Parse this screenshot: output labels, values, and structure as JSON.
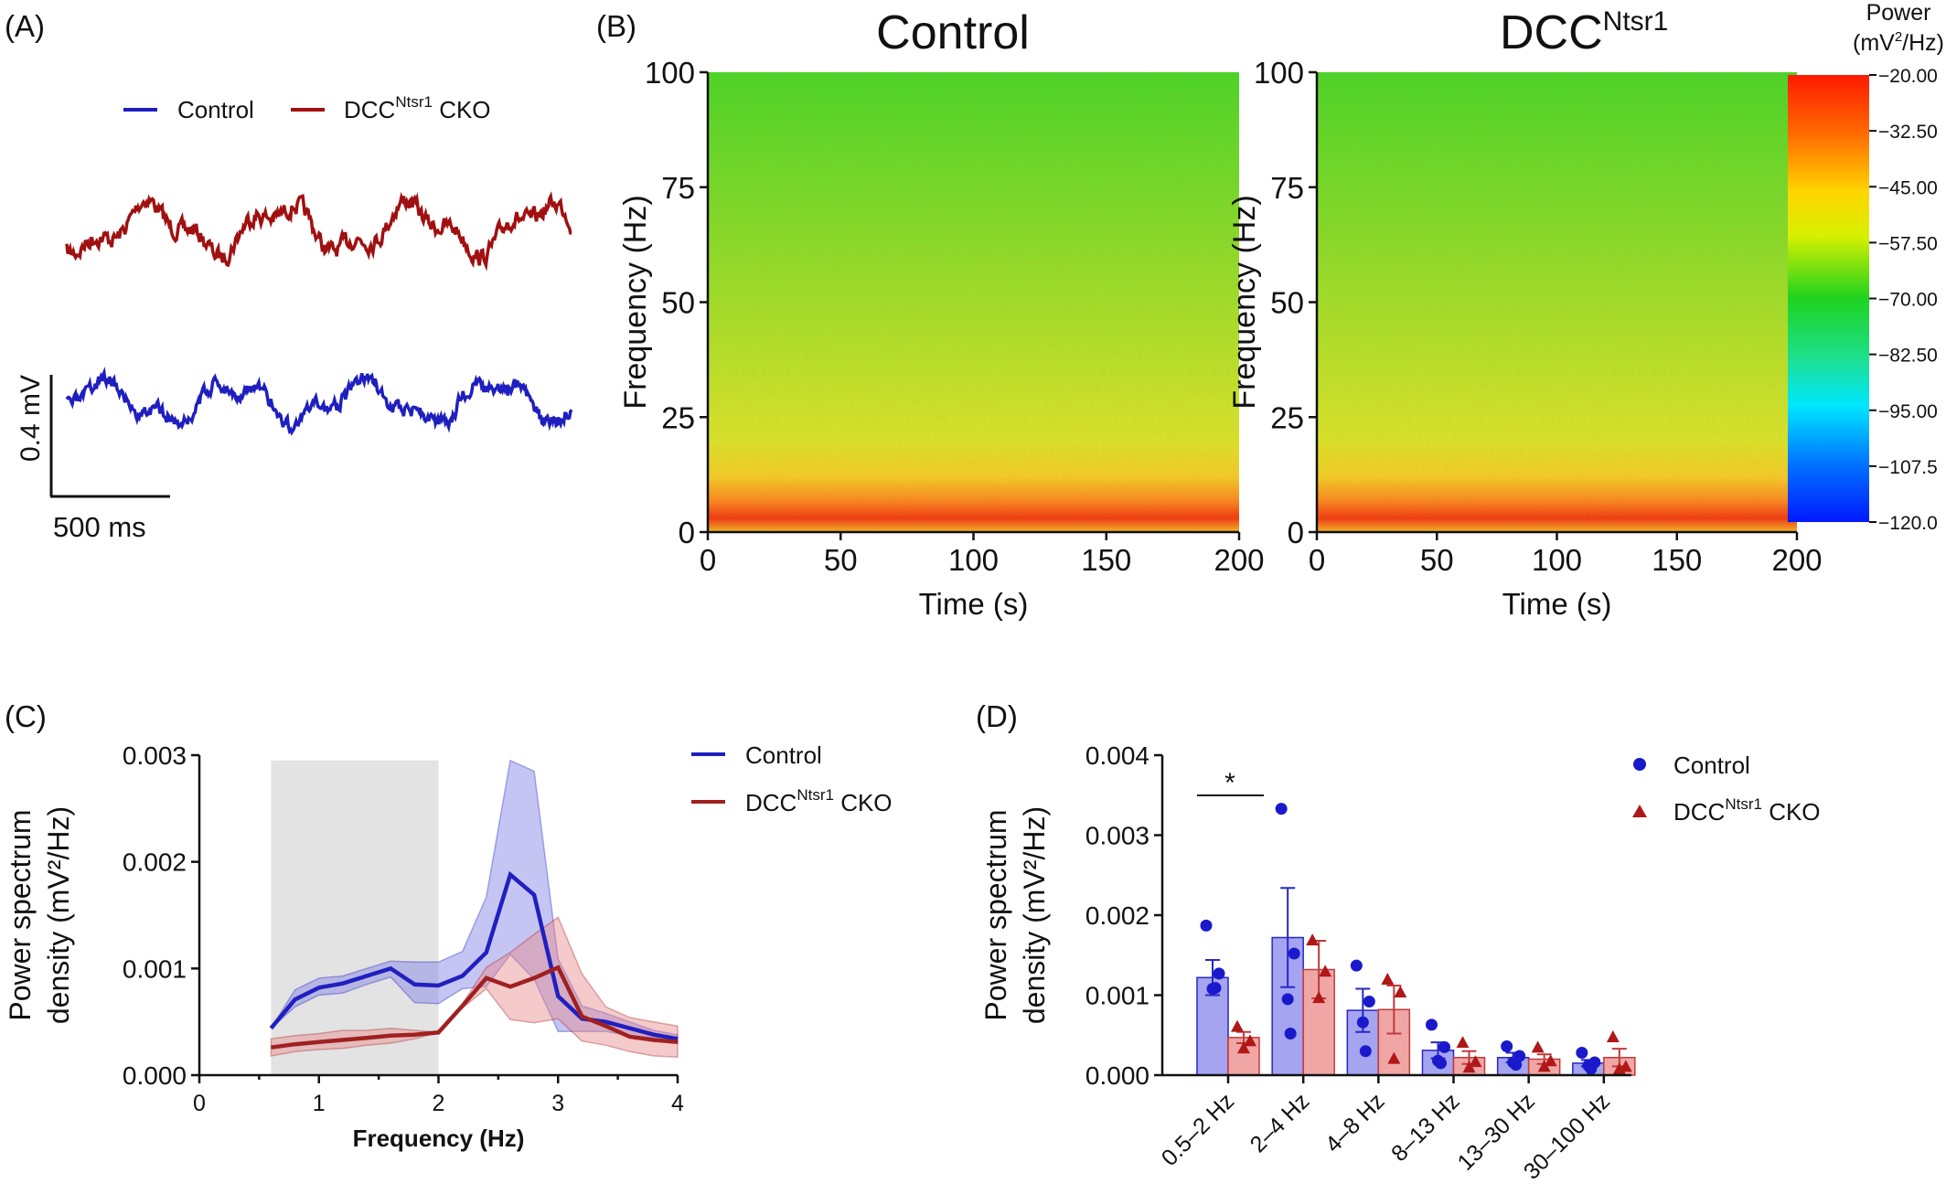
{
  "panels": {
    "A": {
      "label": "(A)",
      "legend": [
        {
          "name": "Control",
          "color": "#1f1fbf"
        },
        {
          "name": "DCC",
          "sup": "Ntsr1",
          "suffix": " CKO",
          "color": "#a01010"
        }
      ],
      "scale_bar": {
        "vertical": "0.4 mV",
        "horizontal": "500 ms"
      }
    },
    "B": {
      "label": "(B)",
      "title_left": "Control",
      "title_right_base": "DCC",
      "title_right_sup": "Ntsr1",
      "colorbar": {
        "title_line1": "Power",
        "title_line2_base": "(mV",
        "title_line2_sup": "2",
        "title_line2_end": "/Hz)",
        "ticks": [
          "−20.00",
          "−32.50",
          "−45.00",
          "−57.50",
          "−70.00",
          "−82.50",
          "−95.00",
          "−107.5",
          "−120.0"
        ],
        "range": [
          -120,
          -20
        ]
      }
    },
    "C": {
      "label": "(C)",
      "legend": [
        {
          "name": "Control",
          "color": "#2020c0"
        },
        {
          "name": "DCC",
          "sup": "Ntsr1",
          "suffix": " CKO",
          "color": "#a02020"
        }
      ]
    },
    "D": {
      "label": "(D)",
      "legend": [
        {
          "name": "Control",
          "color": "#1a1acc"
        },
        {
          "name": "DCC",
          "sup": "Ntsr1",
          "suffix": " CKO",
          "color": "#b01818"
        }
      ],
      "significance": "*"
    }
  },
  "chart_data": [
    {
      "panel": "B-left",
      "type": "heatmap",
      "title": "Control",
      "xlabel": "Time (s)",
      "ylabel": "Frequency (Hz)",
      "xlim": [
        0,
        200
      ],
      "ylim": [
        0,
        100
      ],
      "xticks": [
        "0",
        "50",
        "100",
        "150",
        "200"
      ],
      "yticks": [
        "0",
        "25",
        "50",
        "75",
        "100"
      ]
    },
    {
      "panel": "B-right",
      "type": "heatmap",
      "title": "DCC Ntsr1",
      "xlabel": "Time (s)",
      "ylabel": "Frequency (Hz)",
      "xlim": [
        0,
        200
      ],
      "ylim": [
        0,
        100
      ],
      "xticks": [
        "0",
        "50",
        "100",
        "150",
        "200"
      ],
      "yticks": [
        "0",
        "25",
        "50",
        "75",
        "100"
      ]
    },
    {
      "panel": "C",
      "type": "line",
      "xlabel": "Frequency (Hz)",
      "ylabel_line1": "Power spectrum",
      "ylabel_line2": "density (mV²/Hz)",
      "xlim": [
        0,
        4
      ],
      "ylim": [
        0,
        0.003
      ],
      "xticks": [
        "0",
        "1",
        "2",
        "3",
        "4"
      ],
      "yticks": [
        "0.000",
        "0.001",
        "0.002",
        "0.003"
      ],
      "shaded_region": [
        0.6,
        2.0
      ],
      "series": [
        {
          "name": "Control",
          "x": [
            0.6,
            0.8,
            1.0,
            1.2,
            1.4,
            1.6,
            1.8,
            2.0,
            2.2,
            2.4,
            2.6,
            2.8,
            3.0,
            3.2,
            3.4,
            3.6,
            3.8,
            4.0
          ],
          "mean": [
            0.00044,
            0.00071,
            0.00082,
            0.00086,
            0.00093,
            0.001,
            0.00085,
            0.00084,
            0.00093,
            0.00115,
            0.00188,
            0.00169,
            0.00074,
            0.00053,
            0.0005,
            0.00044,
            0.00038,
            0.00034
          ],
          "upper": [
            0.00044,
            0.0008,
            0.00091,
            0.00093,
            0.001,
            0.00107,
            0.00106,
            0.00106,
            0.00116,
            0.00167,
            0.00295,
            0.00285,
            0.00109,
            0.00065,
            0.00058,
            0.0005,
            0.00042,
            0.00038
          ],
          "lower": [
            0.00044,
            0.00064,
            0.00075,
            0.00077,
            0.00085,
            0.00092,
            0.00068,
            0.00067,
            0.00081,
            0.00083,
            0.00113,
            0.0009,
            0.00041,
            0.00041,
            0.00041,
            0.00037,
            0.00035,
            0.0003
          ]
        },
        {
          "name": "DCC Ntsr1 CKO",
          "x": [
            0.6,
            0.8,
            1.0,
            1.2,
            1.4,
            1.6,
            1.8,
            2.0,
            2.2,
            2.4,
            2.6,
            2.8,
            3.0,
            3.2,
            3.4,
            3.6,
            3.8,
            4.0
          ],
          "mean": [
            0.00026,
            0.00029,
            0.00031,
            0.00033,
            0.00035,
            0.00037,
            0.00038,
            0.0004,
            0.00065,
            0.00091,
            0.00083,
            0.00091,
            0.00101,
            0.00055,
            0.00046,
            0.00036,
            0.00033,
            0.00031
          ],
          "upper": [
            0.00034,
            0.00037,
            0.00039,
            0.00042,
            0.00042,
            0.00044,
            0.00042,
            0.0004,
            0.00067,
            0.00101,
            0.00115,
            0.00132,
            0.00148,
            0.00095,
            0.00064,
            0.00054,
            0.0005,
            0.00046
          ],
          "lower": [
            0.00018,
            0.00022,
            0.00024,
            0.00025,
            0.00028,
            0.0003,
            0.00034,
            0.0004,
            0.00063,
            0.00081,
            0.00052,
            0.00049,
            0.00053,
            0.00032,
            0.00028,
            0.00022,
            0.00018,
            0.00017
          ]
        }
      ]
    },
    {
      "panel": "D",
      "type": "bar",
      "ylabel_line1": "Power spectrum",
      "ylabel_line2": "density (mV²/Hz)",
      "ylim": [
        0,
        0.004
      ],
      "yticks": [
        "0.000",
        "0.001",
        "0.002",
        "0.003",
        "0.004"
      ],
      "categories": [
        "0.5–2 Hz",
        "2–4 Hz",
        "4–8 Hz",
        "8–13 Hz",
        "13–30 Hz",
        "30–100 Hz"
      ],
      "series": [
        {
          "name": "Control",
          "values": [
            0.00122,
            0.00172,
            0.00081,
            0.00031,
            0.00022,
            0.00015
          ],
          "sem": [
            0.00022,
            0.00062,
            0.00027,
            0.0001,
            6e-05,
            4e-05
          ],
          "points": [
            [
              0.00187,
              0.00127,
              0.00108,
              0.00109
            ],
            [
              0.00333,
              0.00152,
              0.00095,
              0.00052
            ],
            [
              0.00137,
              0.00092,
              0.00066,
              0.0003
            ],
            [
              0.00063,
              0.00035,
              0.00018,
              0.00015
            ],
            [
              0.00036,
              0.00024,
              0.00016,
              0.00013
            ],
            [
              0.00028,
              0.00016,
              0.00012,
              8e-05
            ]
          ]
        },
        {
          "name": "DCC Ntsr1 CKO",
          "values": [
            0.00047,
            0.00132,
            0.00082,
            0.00022,
            0.0002,
            0.00022
          ],
          "sem": [
            7e-05,
            0.00036,
            0.0003,
            8e-05,
            6e-05,
            0.00011
          ],
          "points": [
            [
              0.00061,
              0.00043,
              0.00034
            ],
            [
              0.00169,
              0.0013,
              0.00097
            ],
            [
              0.0012,
              0.00104,
              0.00021
            ],
            [
              0.00041,
              0.00017,
              0.0001
            ],
            [
              0.00035,
              0.00018,
              0.00011
            ],
            [
              0.00048,
              0.00011,
              8e-05
            ]
          ]
        }
      ]
    }
  ]
}
